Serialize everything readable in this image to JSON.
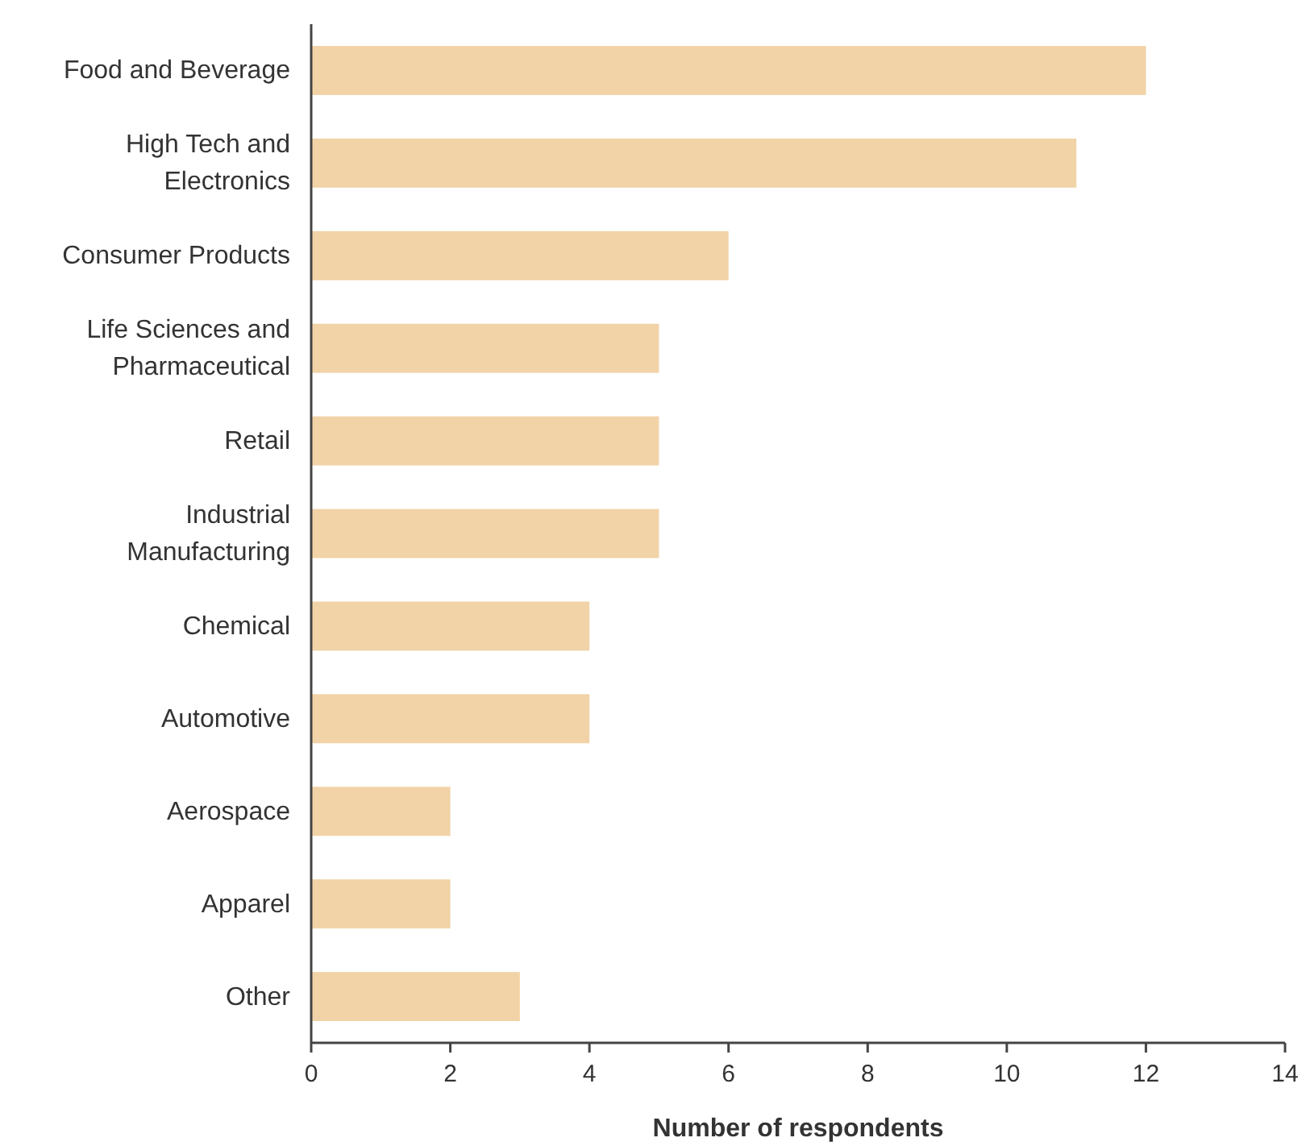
{
  "chart_data": {
    "type": "bar",
    "orientation": "horizontal",
    "xlabel": "Number of respondents",
    "categories": [
      "Food and Beverage",
      "High Tech and Electronics",
      "Consumer Products",
      "Life Sciences and Pharmaceutical",
      "Retail",
      "Industrial Manufacturing",
      "Chemical",
      "Automotive",
      "Aerospace",
      "Apparel",
      "Other"
    ],
    "values": [
      12,
      11,
      6,
      5,
      5,
      5,
      4,
      4,
      2,
      2,
      3
    ],
    "color": "#f1d3a7",
    "xlim": [
      0,
      14
    ],
    "xticks": [
      0,
      2,
      4,
      6,
      8,
      10,
      12,
      14
    ],
    "grid": false
  }
}
